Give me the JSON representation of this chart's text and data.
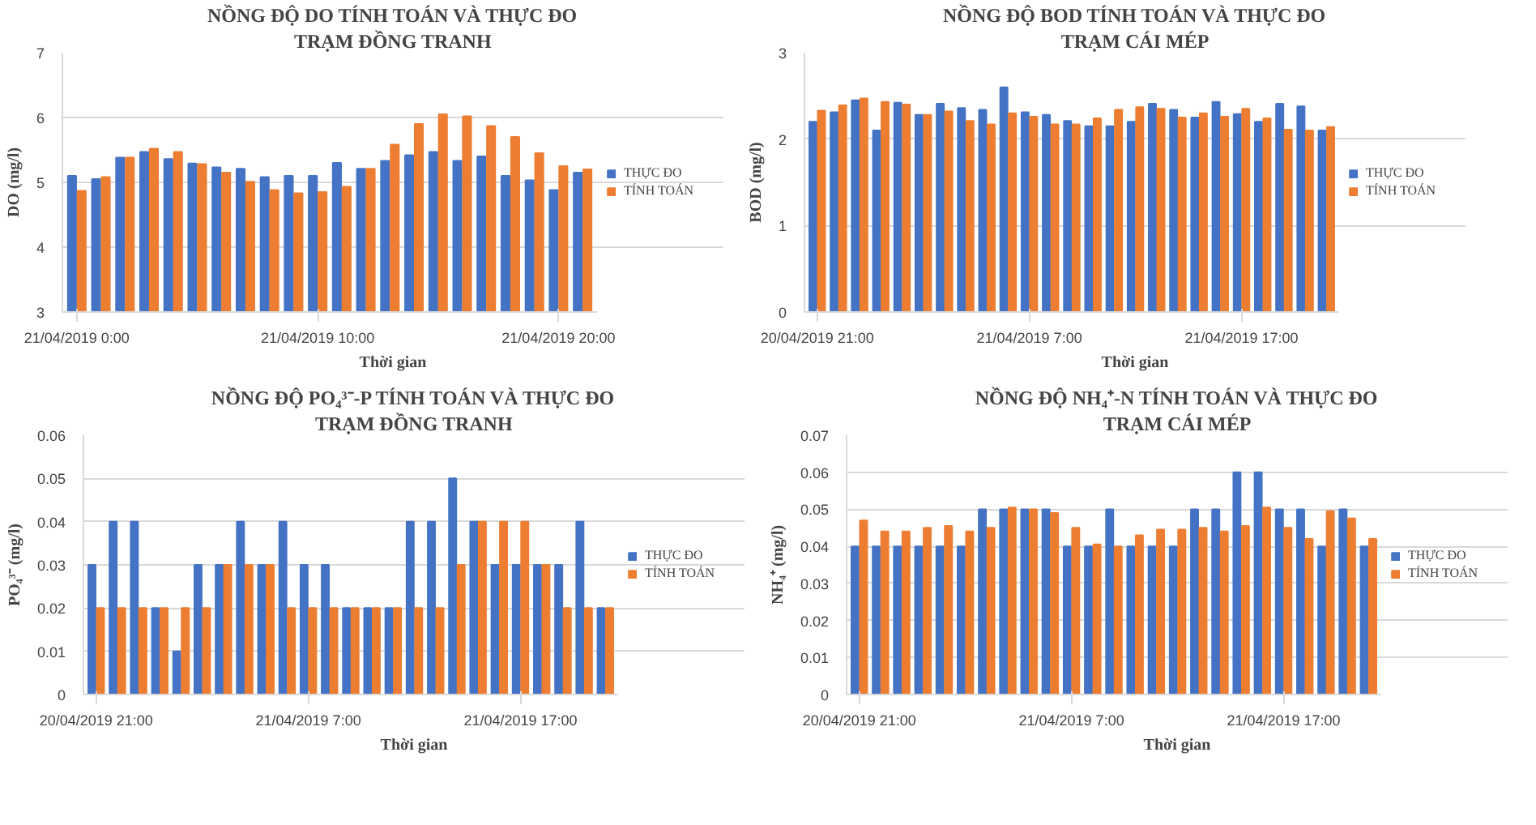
{
  "chart_data": [
    {
      "type": "bar",
      "title": "NỒNG ĐỘ DO TÍNH TOÁN VÀ THỰC ĐO",
      "subtitle": "TRẠM ĐỒNG TRANH",
      "xlabel": "Thời gian",
      "ylabel": "DO (mg/l)",
      "categories": [
        "21/04/2019 0:00",
        null,
        null,
        null,
        null,
        null,
        null,
        null,
        null,
        null,
        "21/04/2019 10:00",
        null,
        null,
        null,
        null,
        null,
        null,
        null,
        null,
        null,
        "21/04/2019 20:00",
        null
      ],
      "ylim": [
        3,
        7
      ],
      "yticks": [
        3,
        4,
        5,
        6,
        7
      ],
      "grid": "y",
      "legend": "right",
      "series": [
        {
          "name": "THỰC ĐO",
          "color": "#4472c4",
          "values": [
            5.1,
            5.05,
            5.38,
            5.47,
            5.36,
            5.29,
            5.23,
            5.21,
            5.08,
            5.1,
            5.1,
            5.3,
            5.21,
            5.33,
            5.42,
            5.47,
            5.33,
            5.4,
            5.1,
            5.03,
            4.88,
            5.15
          ]
        },
        {
          "name": "TÍNH TOÁN",
          "color": "#ed7d31",
          "values": [
            4.87,
            5.08,
            5.38,
            5.52,
            5.47,
            5.28,
            5.15,
            5.01,
            4.88,
            4.83,
            4.85,
            4.93,
            5.21,
            5.58,
            5.9,
            6.05,
            6.02,
            5.87,
            5.7,
            5.45,
            5.25,
            5.2
          ]
        }
      ]
    },
    {
      "type": "bar",
      "title": "NỒNG ĐỘ BOD TÍNH TOÁN VÀ THỰC ĐO",
      "subtitle": "TRẠM CÁI MÉP",
      "xlabel": "Thời gian",
      "ylabel": "BOD (mg/l)",
      "categories": [
        "20/04/2019 21:00",
        null,
        null,
        null,
        null,
        null,
        null,
        null,
        null,
        null,
        "21/04/2019 7:00",
        null,
        null,
        null,
        null,
        null,
        null,
        null,
        null,
        null,
        "21/04/2019 17:00",
        null,
        null,
        null,
        null
      ],
      "ylim": [
        0,
        3
      ],
      "yticks": [
        0,
        1,
        2,
        3
      ],
      "grid": "y",
      "legend": "right",
      "series": [
        {
          "name": "THỰC ĐO",
          "color": "#4472c4",
          "values": [
            2.2,
            2.31,
            2.45,
            2.1,
            2.42,
            2.28,
            2.41,
            2.36,
            2.34,
            2.6,
            2.31,
            2.28,
            2.21,
            2.15,
            2.15,
            2.2,
            2.41,
            2.34,
            2.25,
            2.43,
            2.29,
            2.2,
            2.41,
            2.38,
            2.1
          ]
        },
        {
          "name": "TÍNH TOÁN",
          "color": "#ed7d31",
          "values": [
            2.33,
            2.39,
            2.47,
            2.43,
            2.4,
            2.28,
            2.32,
            2.21,
            2.17,
            2.3,
            2.26,
            2.17,
            2.17,
            2.24,
            2.34,
            2.37,
            2.35,
            2.25,
            2.3,
            2.26,
            2.35,
            2.24,
            2.11,
            2.1,
            2.14
          ]
        }
      ]
    },
    {
      "type": "bar",
      "title": "NỒNG ĐỘ PO₄³⁻-P TÍNH TOÁN VÀ THỰC ĐO",
      "subtitle": "TRẠM ĐỒNG TRANH",
      "xlabel": "Thời gian",
      "ylabel": "PO₄³⁻ (mg/l)",
      "categories": [
        "20/04/2019 21:00",
        null,
        null,
        null,
        null,
        null,
        null,
        null,
        null,
        null,
        "21/04/2019 7:00",
        null,
        null,
        null,
        null,
        null,
        null,
        null,
        null,
        null,
        "21/04/2019 17:00",
        null,
        null,
        null,
        null
      ],
      "ylim": [
        0,
        0.06
      ],
      "yticks": [
        0,
        0.01,
        0.02,
        0.03,
        0.04,
        0.05,
        0.06
      ],
      "grid": "y",
      "legend": "right",
      "series": [
        {
          "name": "THỰC ĐO",
          "color": "#4472c4",
          "values": [
            0.03,
            0.04,
            0.04,
            0.02,
            0.01,
            0.03,
            0.03,
            0.04,
            0.03,
            0.04,
            0.03,
            0.03,
            0.02,
            0.02,
            0.02,
            0.04,
            0.04,
            0.05,
            0.04,
            0.03,
            0.03,
            0.03,
            0.03,
            0.04,
            0.02
          ]
        },
        {
          "name": "TÍNH TOÁN",
          "color": "#ed7d31",
          "values": [
            0.02,
            0.02,
            0.02,
            0.02,
            0.02,
            0.02,
            0.03,
            0.03,
            0.03,
            0.02,
            0.02,
            0.02,
            0.02,
            0.02,
            0.02,
            0.02,
            0.02,
            0.03,
            0.04,
            0.04,
            0.04,
            0.03,
            0.02,
            0.02,
            0.02
          ]
        }
      ]
    },
    {
      "type": "bar",
      "title": "NỒNG ĐỘ NH₄⁺-N TÍNH TOÁN VÀ THỰC ĐO",
      "subtitle": "TRẠM CÁI MÉP",
      "xlabel": "Thời gian",
      "ylabel": "NH₄⁺ (mg/l)",
      "categories": [
        "20/04/2019 21:00",
        null,
        null,
        null,
        null,
        null,
        null,
        null,
        null,
        null,
        "21/04/2019 7:00",
        null,
        null,
        null,
        null,
        null,
        null,
        null,
        null,
        null,
        "21/04/2019 17:00",
        null,
        null,
        null,
        null
      ],
      "ylim": [
        0,
        0.07
      ],
      "yticks": [
        0,
        0.01,
        0.02,
        0.03,
        0.04,
        0.05,
        0.06,
        0.07
      ],
      "grid": "y",
      "legend": "right",
      "series": [
        {
          "name": "THỰC ĐO",
          "color": "#4472c4",
          "values": [
            0.04,
            0.04,
            0.04,
            0.04,
            0.04,
            0.04,
            0.05,
            0.05,
            0.05,
            0.05,
            0.04,
            0.04,
            0.05,
            0.04,
            0.04,
            0.04,
            0.05,
            0.05,
            0.06,
            0.06,
            0.05,
            0.05,
            0.04,
            0.05,
            0.04
          ]
        },
        {
          "name": "TÍNH TOÁN",
          "color": "#ed7d31",
          "values": [
            0.047,
            0.044,
            0.044,
            0.045,
            0.0455,
            0.044,
            0.045,
            0.0505,
            0.05,
            0.049,
            0.045,
            0.0405,
            0.04,
            0.043,
            0.0445,
            0.0445,
            0.045,
            0.044,
            0.0455,
            0.0505,
            0.045,
            0.042,
            0.0495,
            0.0475,
            0.042
          ]
        }
      ]
    }
  ]
}
